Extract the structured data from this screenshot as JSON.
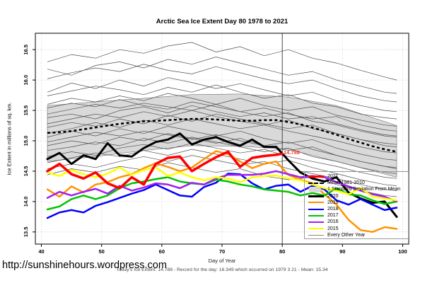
{
  "footer": {
    "url": "http://sunshinehours.wordpress.com",
    "stats": "Today's Ice Extent: 14.788  - Record for the day: 16.349 which occurred on 1979 3 21  - Mean: 15.34"
  },
  "chart_data": {
    "type": "line",
    "title": "Arctic Sea Ice Extent Day 80 1978 to 2021",
    "xlabel": "Day of Year",
    "ylabel": "Ice Extent in millions of sq. km.",
    "xlim": [
      39,
      101
    ],
    "ylim": [
      13.3,
      16.77
    ],
    "x_ticks": [
      40,
      50,
      60,
      70,
      80,
      90,
      100
    ],
    "y_ticks": [
      13.5,
      14.0,
      14.5,
      15.0,
      15.5,
      16.0,
      16.5
    ],
    "grid": true,
    "grid_color": "#c4c4c4",
    "vline": {
      "x": 80,
      "color": "#333333"
    },
    "annotation": {
      "text": "14.788",
      "x": 80.5,
      "y": 14.79,
      "color": "#f03b2e"
    },
    "days": [
      41,
      43,
      45,
      47,
      49,
      51,
      53,
      55,
      57,
      59,
      61,
      63,
      65,
      67,
      69,
      71,
      73,
      75,
      77,
      79,
      81,
      83,
      85,
      87,
      89,
      91,
      93,
      95,
      97,
      99
    ],
    "band": {
      "label": "1 Standard Deviation From Mean",
      "color": "#d9d9d9",
      "x": [
        41,
        49,
        57,
        65,
        73,
        81,
        89,
        99
      ],
      "upper": [
        15.58,
        15.64,
        15.7,
        15.76,
        15.77,
        15.72,
        15.58,
        15.25
      ],
      "lower": [
        14.66,
        14.74,
        14.84,
        14.92,
        14.91,
        14.86,
        14.66,
        14.4
      ]
    },
    "mean": {
      "label": "Mean 1981-2010",
      "color": "#000000",
      "style": "dashed",
      "values": [
        15.13,
        15.14,
        15.16,
        15.19,
        15.22,
        15.25,
        15.28,
        15.3,
        15.32,
        15.33,
        15.34,
        15.35,
        15.36,
        15.36,
        15.35,
        15.34,
        15.33,
        15.33,
        15.34,
        15.34,
        15.31,
        15.27,
        15.22,
        15.16,
        15.1,
        15.03,
        14.97,
        14.91,
        14.86,
        14.82
      ]
    },
    "series": [
      {
        "name": "2020",
        "color": "#000000",
        "width": 3,
        "values": [
          14.7,
          14.8,
          14.62,
          14.76,
          14.7,
          14.96,
          14.76,
          14.74,
          14.88,
          14.98,
          15.02,
          15.12,
          14.94,
          15.02,
          15.06,
          14.98,
          14.92,
          15.02,
          14.9,
          14.9,
          14.68,
          14.48,
          14.38,
          14.33,
          14.4,
          14.15,
          14.05,
          13.98,
          14.0,
          13.75
        ]
      },
      {
        "name": "2019",
        "color": "#ff9400",
        "width": 2.5,
        "values": [
          14.2,
          14.08,
          14.25,
          14.15,
          14.28,
          14.32,
          14.4,
          14.45,
          14.55,
          14.63,
          14.57,
          14.5,
          14.56,
          14.7,
          14.83,
          14.78,
          14.66,
          14.55,
          14.62,
          14.66,
          14.44,
          14.36,
          14.3,
          14.12,
          13.95,
          13.7,
          13.53,
          13.5,
          13.58,
          13.55
        ]
      },
      {
        "name": "2018",
        "color": "#0000ff",
        "width": 2.5,
        "values": [
          13.73,
          13.82,
          13.86,
          13.82,
          13.93,
          13.99,
          14.06,
          14.13,
          14.19,
          14.28,
          14.19,
          14.1,
          14.08,
          14.24,
          14.31,
          14.46,
          14.45,
          14.3,
          14.2,
          14.26,
          14.28,
          14.16,
          14.26,
          14.2,
          14.02,
          13.95,
          14.04,
          13.95,
          13.86,
          13.9
        ]
      },
      {
        "name": "2017",
        "color": "#00c400",
        "width": 2.5,
        "values": [
          13.87,
          13.92,
          14.04,
          14.1,
          14.04,
          14.1,
          14.22,
          14.3,
          14.33,
          14.37,
          14.4,
          14.33,
          14.3,
          14.28,
          14.36,
          14.33,
          14.28,
          14.25,
          14.2,
          14.18,
          14.16,
          14.1,
          14.14,
          14.1,
          14.22,
          14.12,
          14.1,
          14.02,
          13.96,
          14.0
        ]
      },
      {
        "name": "2016",
        "color": "#a020f0",
        "width": 2.5,
        "values": [
          14.06,
          14.16,
          14.1,
          14.16,
          14.21,
          14.13,
          14.26,
          14.18,
          14.23,
          14.3,
          14.28,
          14.22,
          14.31,
          14.28,
          14.38,
          14.44,
          14.44,
          14.44,
          14.46,
          14.5,
          14.45,
          14.4,
          14.42,
          14.4,
          14.32,
          14.25,
          14.18,
          14.12,
          14.08,
          14.0
        ]
      },
      {
        "name": "2015",
        "color": "#ffff00",
        "width": 2.5,
        "values": [
          14.48,
          14.42,
          14.52,
          14.45,
          14.4,
          14.46,
          14.56,
          14.44,
          14.52,
          14.56,
          14.42,
          14.48,
          14.4,
          14.35,
          14.4,
          14.38,
          14.32,
          14.4,
          14.42,
          14.43,
          14.38,
          14.35,
          14.28,
          14.22,
          14.18,
          14.12,
          14.22,
          14.08,
          14.05,
          14.02
        ]
      },
      {
        "name": "2021",
        "color": "#ff0000",
        "width": 3.5,
        "x": [
          41,
          43,
          45,
          47,
          49,
          51,
          53,
          55,
          57,
          59,
          61,
          63,
          65,
          67,
          69,
          71,
          73,
          75,
          77,
          79,
          80
        ],
        "values": [
          14.5,
          14.62,
          14.45,
          14.38,
          14.48,
          14.3,
          14.22,
          14.4,
          14.28,
          14.62,
          14.72,
          14.74,
          14.5,
          14.62,
          14.73,
          14.82,
          14.57,
          14.72,
          14.75,
          14.77,
          14.788
        ]
      }
    ],
    "other_years": {
      "label": "Every Other Year",
      "color": "#4d4d4d",
      "width": 0.7,
      "x": [
        41,
        45,
        49,
        53,
        57,
        61,
        65,
        69,
        73,
        77,
        81,
        85,
        89,
        93,
        97,
        99
      ],
      "lines": [
        [
          16.3,
          16.42,
          16.36,
          16.5,
          16.44,
          16.56,
          16.62,
          16.46,
          16.55,
          16.4,
          16.5,
          16.36,
          16.28,
          16.16,
          16.05,
          16.0
        ],
        [
          16.18,
          16.08,
          16.24,
          16.3,
          16.2,
          16.34,
          16.26,
          16.38,
          16.28,
          16.18,
          16.08,
          16.14,
          16.0,
          15.9,
          15.8,
          15.78
        ],
        [
          16.02,
          16.12,
          16.2,
          16.14,
          16.26,
          16.16,
          16.1,
          16.22,
          16.12,
          16.02,
          15.94,
          16.0,
          15.86,
          15.74,
          15.66,
          15.64
        ],
        [
          15.8,
          15.95,
          15.86,
          16.0,
          15.9,
          16.04,
          15.96,
          15.86,
          15.94,
          15.84,
          15.74,
          15.8,
          15.66,
          15.58,
          15.5,
          15.48
        ],
        [
          15.74,
          15.82,
          15.9,
          15.84,
          15.76,
          15.88,
          15.8,
          15.92,
          15.8,
          15.7,
          15.76,
          15.62,
          15.56,
          15.44,
          15.38,
          15.36
        ],
        [
          15.6,
          15.7,
          15.64,
          15.74,
          15.66,
          15.78,
          15.7,
          15.6,
          15.7,
          15.58,
          15.5,
          15.56,
          15.42,
          15.34,
          15.26,
          15.24
        ],
        [
          15.54,
          15.62,
          15.56,
          15.68,
          15.58,
          15.52,
          15.64,
          15.56,
          15.48,
          15.54,
          15.44,
          15.36,
          15.4,
          15.26,
          15.18,
          15.16
        ],
        [
          15.44,
          15.52,
          15.6,
          15.54,
          15.62,
          15.56,
          15.5,
          15.6,
          15.48,
          15.4,
          15.46,
          15.32,
          15.26,
          15.16,
          15.08,
          15.06
        ],
        [
          15.38,
          15.44,
          15.36,
          15.5,
          15.56,
          15.46,
          15.58,
          15.48,
          15.4,
          15.46,
          15.36,
          15.4,
          15.28,
          15.18,
          15.1,
          15.08
        ],
        [
          15.28,
          15.36,
          15.44,
          15.38,
          15.48,
          15.4,
          15.5,
          15.4,
          15.32,
          15.26,
          15.34,
          15.2,
          15.12,
          15.02,
          14.96,
          14.94
        ],
        [
          15.22,
          15.3,
          15.24,
          15.36,
          15.28,
          15.42,
          15.32,
          15.44,
          15.36,
          15.28,
          15.2,
          15.26,
          15.12,
          15.02,
          14.92,
          14.9
        ],
        [
          15.12,
          15.2,
          15.3,
          15.22,
          15.34,
          15.26,
          15.36,
          15.28,
          15.2,
          15.26,
          15.16,
          15.08,
          15.0,
          14.9,
          14.82,
          14.8
        ],
        [
          15.06,
          15.16,
          15.08,
          15.2,
          15.12,
          15.24,
          15.16,
          15.08,
          15.16,
          15.04,
          14.96,
          15.02,
          14.88,
          14.78,
          14.7,
          14.68
        ],
        [
          14.98,
          15.06,
          15.14,
          15.08,
          15.16,
          15.1,
          15.02,
          15.1,
          15.0,
          14.92,
          14.98,
          14.86,
          14.76,
          14.66,
          14.58,
          14.56
        ],
        [
          14.92,
          15.0,
          14.94,
          15.06,
          15.0,
          15.12,
          15.04,
          14.96,
          15.04,
          14.92,
          14.84,
          14.9,
          14.76,
          14.66,
          14.58,
          14.54
        ],
        [
          14.84,
          14.9,
          14.98,
          14.92,
          15.04,
          14.96,
          15.06,
          14.98,
          14.9,
          14.82,
          14.88,
          14.74,
          14.66,
          14.56,
          14.48,
          14.46
        ],
        [
          14.74,
          14.82,
          14.76,
          14.88,
          14.94,
          14.86,
          14.96,
          14.88,
          14.8,
          14.86,
          14.74,
          14.66,
          14.58,
          14.48,
          14.4,
          14.38
        ],
        [
          14.64,
          14.72,
          14.8,
          14.74,
          14.84,
          14.76,
          14.86,
          14.78,
          14.7,
          14.62,
          14.68,
          14.56,
          14.46,
          14.36,
          14.28,
          14.26
        ],
        [
          14.54,
          14.62,
          14.56,
          14.66,
          14.74,
          14.66,
          14.76,
          14.68,
          14.6,
          14.66,
          14.54,
          14.46,
          14.38,
          14.28,
          14.2,
          14.18
        ],
        [
          14.44,
          14.54,
          14.48,
          14.58,
          14.52,
          14.64,
          14.56,
          14.48,
          14.54,
          14.42,
          14.36,
          14.4,
          14.28,
          14.18,
          14.1,
          14.08
        ]
      ]
    },
    "legend": {
      "position": "bottom-right",
      "entries": [
        {
          "label": "2021",
          "type": "line",
          "color": "#ff0000",
          "lw": 3.5
        },
        {
          "label": "Mean 1981-2010",
          "type": "dashed",
          "color": "#000000",
          "lw": 2.5
        },
        {
          "label": "1 Standard Deviation From Mean",
          "type": "band",
          "color": "#d9d9d9"
        },
        {
          "label": "2020",
          "type": "line",
          "color": "#000000",
          "lw": 3
        },
        {
          "label": "2019",
          "type": "line",
          "color": "#ff9400",
          "lw": 2.5
        },
        {
          "label": "2018",
          "type": "line",
          "color": "#0000ff",
          "lw": 2.5
        },
        {
          "label": "2017",
          "type": "line",
          "color": "#00c400",
          "lw": 2.5
        },
        {
          "label": "2016",
          "type": "line",
          "color": "#a020f0",
          "lw": 2.5
        },
        {
          "label": "2015",
          "type": "line",
          "color": "#ffff00",
          "lw": 2.5
        },
        {
          "label": "Every Other Year",
          "type": "thinline",
          "color": "#888888",
          "lw": 1
        }
      ]
    }
  }
}
